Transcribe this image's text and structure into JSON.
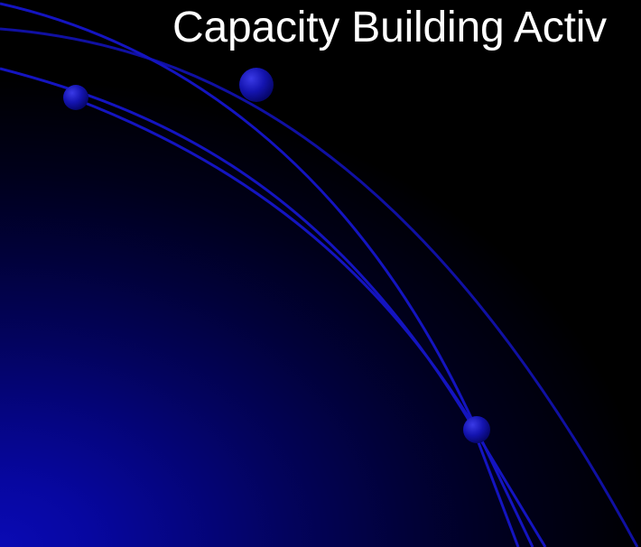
{
  "slide": {
    "title": "Capacity Building Activ"
  },
  "colors": {
    "background": "#000000",
    "glow": "#0a0ab4",
    "arc": "#1515c8",
    "title": "#ffffff"
  }
}
